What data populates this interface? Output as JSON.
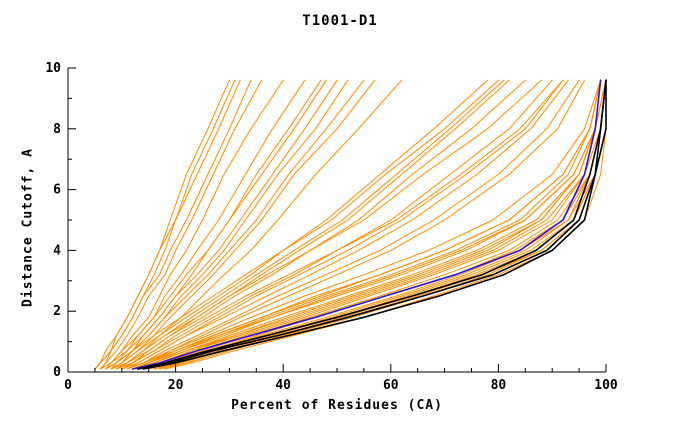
{
  "title": "T1001-D1",
  "axes": {
    "xlabel": "Percent of Residues (CA)",
    "ylabel": "Distance Cutoff, A",
    "xlim": [
      0,
      100
    ],
    "ylim": [
      0,
      10
    ],
    "xticks_major": [
      0,
      20,
      40,
      60,
      80,
      100
    ],
    "xtick_minor_step": 5,
    "yticks_major": [
      0,
      2,
      4,
      6,
      8,
      10
    ],
    "ytick_minor_step": 1
  },
  "colors": {
    "model_curves": "#ff8c00",
    "best_curves": "#000000",
    "highlight_curve": "#3311cc",
    "axis": "#000000",
    "background": "#ffffff"
  },
  "chart_data": {
    "type": "line",
    "title": "T1001-D1",
    "xlabel": "Percent of Residues (CA)",
    "ylabel": "Distance Cutoff, A",
    "xlim": [
      0,
      100
    ],
    "ylim": [
      0,
      10
    ],
    "legend": "none",
    "grid": false,
    "y_grid": [
      0.1,
      0.3,
      0.7,
      1.2,
      1.8,
      2.5,
      3.2,
      4.0,
      5.0,
      6.5,
      8.0,
      9.6
    ],
    "groups": [
      {
        "name": "model-curves",
        "color": "#ff8c00",
        "width": 1,
        "curves": [
          [
            5,
            6,
            8,
            10,
            12,
            14,
            16,
            18,
            20,
            24,
            28,
            32
          ],
          [
            6,
            7,
            9,
            11,
            13,
            15,
            18,
            20,
            23,
            27,
            31,
            36
          ],
          [
            6,
            8,
            10,
            12,
            15,
            17,
            19,
            22,
            25,
            29,
            34,
            40
          ],
          [
            7,
            8,
            11,
            13,
            16,
            18,
            21,
            24,
            28,
            33,
            38,
            44
          ],
          [
            7,
            9,
            11,
            14,
            17,
            20,
            23,
            26,
            30,
            36,
            42,
            48
          ],
          [
            8,
            10,
            12,
            15,
            18,
            21,
            25,
            29,
            33,
            39,
            46,
            52
          ],
          [
            8,
            10,
            13,
            16,
            19,
            23,
            27,
            31,
            36,
            42,
            50,
            57
          ],
          [
            5,
            6,
            7,
            9,
            11,
            13,
            15,
            17,
            19,
            22,
            26,
            30
          ],
          [
            6,
            7,
            8,
            10,
            12,
            14,
            17,
            19,
            22,
            26,
            30,
            34
          ],
          [
            9,
            11,
            14,
            17,
            21,
            25,
            29,
            34,
            39,
            46,
            54,
            62
          ],
          [
            7,
            9,
            12,
            15,
            18,
            22,
            26,
            30,
            35,
            41,
            48,
            55
          ],
          [
            5,
            6,
            8,
            9,
            11,
            13,
            15,
            17,
            20,
            23,
            27,
            31
          ],
          [
            6,
            8,
            10,
            13,
            16,
            19,
            22,
            26,
            30,
            35,
            41,
            47
          ],
          [
            8,
            9,
            12,
            14,
            17,
            20,
            24,
            28,
            32,
            38,
            44,
            50
          ],
          [
            8,
            10,
            13,
            17,
            22,
            28,
            34,
            40,
            48,
            58,
            68,
            78
          ],
          [
            9,
            11,
            15,
            19,
            25,
            31,
            38,
            45,
            54,
            64,
            75,
            85
          ],
          [
            10,
            12,
            16,
            21,
            27,
            34,
            42,
            50,
            60,
            71,
            82,
            90
          ],
          [
            8,
            11,
            14,
            18,
            24,
            30,
            37,
            45,
            55,
            66,
            78,
            88
          ],
          [
            10,
            13,
            17,
            22,
            29,
            37,
            45,
            54,
            64,
            76,
            86,
            93
          ],
          [
            9,
            12,
            16,
            20,
            26,
            33,
            41,
            50,
            61,
            73,
            84,
            92
          ],
          [
            11,
            14,
            18,
            24,
            31,
            39,
            48,
            58,
            68,
            80,
            89,
            95
          ],
          [
            10,
            12,
            15,
            19,
            24,
            30,
            36,
            43,
            52,
            62,
            72,
            82
          ],
          [
            7,
            9,
            12,
            16,
            21,
            27,
            33,
            40,
            49,
            59,
            70,
            80
          ],
          [
            11,
            13,
            17,
            22,
            28,
            35,
            43,
            52,
            62,
            74,
            85,
            92
          ],
          [
            12,
            15,
            19,
            25,
            32,
            41,
            50,
            60,
            70,
            82,
            91,
            96
          ],
          [
            9,
            11,
            14,
            18,
            23,
            29,
            35,
            42,
            51,
            61,
            71,
            81
          ],
          [
            12,
            15,
            20,
            27,
            36,
            47,
            58,
            70,
            82,
            92,
            97,
            99
          ],
          [
            13,
            16,
            22,
            30,
            40,
            52,
            64,
            76,
            87,
            95,
            98,
            100
          ],
          [
            11,
            14,
            19,
            26,
            34,
            44,
            55,
            67,
            79,
            90,
            96,
            99
          ],
          [
            14,
            18,
            24,
            33,
            44,
            56,
            68,
            80,
            90,
            96,
            99,
            100
          ],
          [
            12,
            16,
            21,
            29,
            38,
            50,
            62,
            74,
            85,
            94,
            98,
            99
          ],
          [
            15,
            19,
            26,
            35,
            46,
            59,
            72,
            83,
            92,
            97,
            99,
            100
          ],
          [
            13,
            17,
            23,
            31,
            42,
            54,
            66,
            78,
            88,
            95,
            98,
            100
          ],
          [
            16,
            20,
            27,
            37,
            49,
            62,
            74,
            85,
            93,
            98,
            99,
            100
          ],
          [
            12,
            15,
            21,
            28,
            37,
            48,
            60,
            72,
            84,
            93,
            97,
            99
          ],
          [
            14,
            17,
            23,
            32,
            43,
            55,
            67,
            79,
            89,
            96,
            98,
            100
          ],
          [
            15,
            20,
            28,
            38,
            50,
            63,
            75,
            86,
            94,
            98,
            100,
            100
          ],
          [
            13,
            16,
            22,
            31,
            41,
            53,
            65,
            77,
            88,
            95,
            98,
            99
          ],
          [
            17,
            22,
            30,
            40,
            53,
            66,
            78,
            88,
            95,
            98,
            100,
            100
          ],
          [
            11,
            14,
            20,
            27,
            36,
            46,
            58,
            70,
            82,
            92,
            97,
            99
          ],
          [
            16,
            21,
            29,
            39,
            51,
            64,
            76,
            87,
            94,
            98,
            99,
            100
          ],
          [
            14,
            18,
            25,
            34,
            45,
            58,
            70,
            82,
            91,
            97,
            99,
            100
          ],
          [
            18,
            23,
            31,
            42,
            55,
            68,
            80,
            90,
            96,
            99,
            100,
            100
          ],
          [
            12,
            15,
            20,
            28,
            38,
            49,
            61,
            73,
            85,
            94,
            98,
            100
          ],
          [
            15,
            19,
            26,
            36,
            48,
            61,
            73,
            84,
            93,
            97,
            99,
            100
          ],
          [
            17,
            21,
            29,
            40,
            52,
            65,
            77,
            88,
            95,
            98,
            100,
            100
          ]
        ]
      },
      {
        "name": "highlight-curve",
        "color": "#3311cc",
        "width": 1.6,
        "curves": [
          [
            12,
            17,
            24,
            34,
            46,
            59,
            72,
            84,
            92,
            96,
            98,
            99
          ]
        ]
      },
      {
        "name": "best-curves",
        "color": "#000000",
        "width": 1.6,
        "curves": [
          [
            13,
            18,
            26,
            37,
            50,
            64,
            77,
            87,
            94,
            97,
            99,
            100
          ],
          [
            14,
            20,
            29,
            41,
            55,
            69,
            81,
            90,
            96,
            98,
            99,
            100
          ],
          [
            13,
            19,
            27,
            39,
            52,
            66,
            79,
            89,
            95,
            98,
            100,
            100
          ]
        ]
      }
    ]
  }
}
